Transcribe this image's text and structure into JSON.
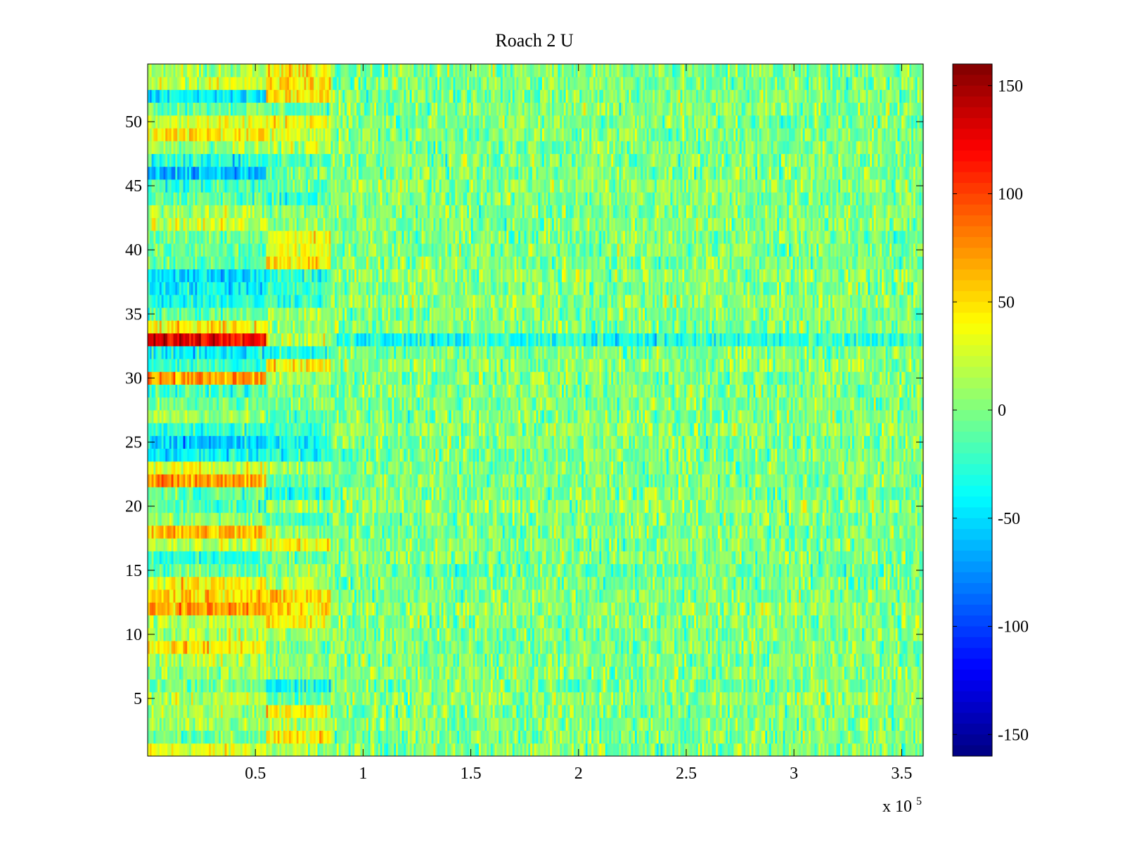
{
  "chart_data": {
    "type": "heatmap",
    "title": "Roach 2 U",
    "xlabel": "",
    "ylabel": "",
    "x_scale_note": "x 10",
    "x_scale_exponent": "5",
    "xlim": [
      0,
      360000
    ],
    "ylim": [
      0.5,
      54.5
    ],
    "x_ticks": [
      50000,
      100000,
      150000,
      200000,
      250000,
      300000,
      350000
    ],
    "x_tick_labels": [
      "0.5",
      "1",
      "1.5",
      "2",
      "2.5",
      "3",
      "3.5"
    ],
    "y_ticks": [
      5,
      10,
      15,
      20,
      25,
      30,
      35,
      40,
      45,
      50
    ],
    "y_tick_labels": [
      "5",
      "10",
      "15",
      "20",
      "25",
      "30",
      "35",
      "40",
      "45",
      "50"
    ],
    "rows": 54,
    "row_segments_x": [
      0,
      55000,
      85000,
      360000
    ],
    "row_means": [
      [
        30,
        10,
        0
      ],
      [
        -5,
        40,
        0
      ],
      [
        5,
        10,
        0
      ],
      [
        10,
        45,
        0
      ],
      [
        15,
        -10,
        5
      ],
      [
        0,
        -40,
        0
      ],
      [
        10,
        5,
        0
      ],
      [
        20,
        10,
        0
      ],
      [
        45,
        -5,
        0
      ],
      [
        15,
        10,
        0
      ],
      [
        20,
        40,
        0
      ],
      [
        70,
        50,
        5
      ],
      [
        55,
        50,
        0
      ],
      [
        40,
        15,
        0
      ],
      [
        -10,
        10,
        -5
      ],
      [
        -30,
        -10,
        0
      ],
      [
        20,
        40,
        0
      ],
      [
        60,
        5,
        0
      ],
      [
        5,
        -20,
        0
      ],
      [
        -15,
        10,
        5
      ],
      [
        -10,
        -30,
        0
      ],
      [
        70,
        -10,
        0
      ],
      [
        30,
        10,
        0
      ],
      [
        -40,
        -30,
        0
      ],
      [
        -60,
        -40,
        0
      ],
      [
        -25,
        -20,
        5
      ],
      [
        10,
        -10,
        0
      ],
      [
        -5,
        0,
        0
      ],
      [
        -20,
        0,
        0
      ],
      [
        70,
        10,
        0
      ],
      [
        -20,
        40,
        5
      ],
      [
        -40,
        -30,
        0
      ],
      [
        130,
        20,
        -30
      ],
      [
        40,
        10,
        0
      ],
      [
        -10,
        10,
        0
      ],
      [
        -30,
        -20,
        5
      ],
      [
        -40,
        -20,
        0
      ],
      [
        -50,
        -30,
        5
      ],
      [
        -10,
        50,
        0
      ],
      [
        -10,
        30,
        0
      ],
      [
        -5,
        40,
        0
      ],
      [
        25,
        10,
        0
      ],
      [
        15,
        0,
        0
      ],
      [
        -10,
        -20,
        0
      ],
      [
        -20,
        -10,
        5
      ],
      [
        -60,
        -5,
        0
      ],
      [
        -30,
        -20,
        0
      ],
      [
        10,
        15,
        0
      ],
      [
        45,
        30,
        0
      ],
      [
        30,
        40,
        0
      ],
      [
        -5,
        -10,
        0
      ],
      [
        -45,
        45,
        0
      ],
      [
        25,
        45,
        0
      ],
      [
        10,
        40,
        0
      ]
    ],
    "colorbar": {
      "colormap": "jet",
      "range": [
        -160,
        160
      ],
      "ticks": [
        150,
        100,
        50,
        0,
        -50,
        -100,
        -150
      ],
      "tick_labels": [
        "150",
        "100",
        "50",
        "0",
        "-50",
        "-100",
        "-150"
      ]
    },
    "colors": {
      "axis": "#000000",
      "background": "#ffffff"
    }
  }
}
